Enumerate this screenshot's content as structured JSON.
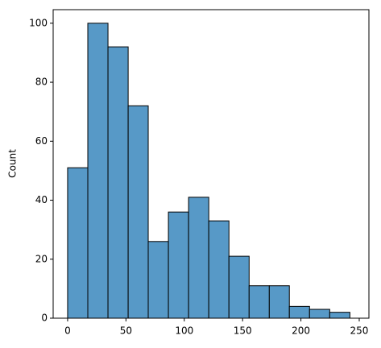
{
  "chart_data": {
    "type": "histogram",
    "ylabel": "Count",
    "bins": [
      0,
      17.3,
      34.6,
      51.9,
      69.1,
      86.4,
      103.7,
      121,
      138.3,
      155.6,
      172.9,
      190.1,
      207.4,
      224.7,
      242
    ],
    "values": [
      51,
      100,
      92,
      72,
      26,
      36,
      41,
      33,
      21,
      11,
      11,
      4,
      3,
      2
    ],
    "color": "#5799c7",
    "xlim": [
      -12.4,
      258.3
    ],
    "xticks": [
      0,
      50,
      100,
      150,
      200,
      250
    ],
    "ylim": [
      0,
      104.6
    ],
    "yticks": [
      0,
      20,
      40,
      60,
      80,
      100
    ],
    "grid": false
  }
}
